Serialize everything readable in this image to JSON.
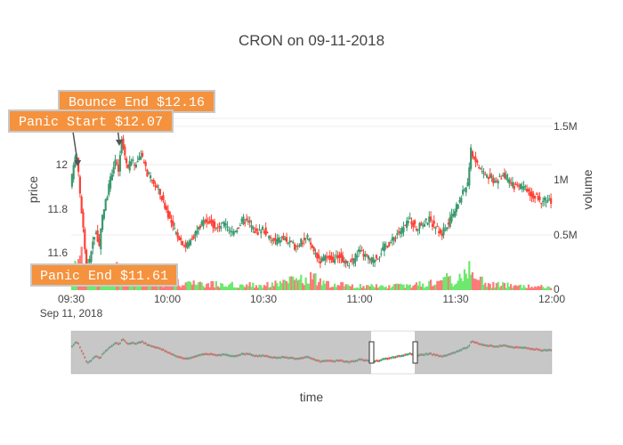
{
  "chart_data": {
    "type": "candlestick",
    "title": "CRON on 09-11-2018",
    "xlabel": "time",
    "y_left_label": "price",
    "y_right_label": "volume",
    "date_subtitle": "Sep 11, 2018",
    "x_ticks": [
      "09:30",
      "10:00",
      "10:30",
      "11:00",
      "11:30",
      "12:00"
    ],
    "y_left_ticks": [
      "11.6",
      "11.8",
      "12"
    ],
    "y_right_ticks": [
      "0",
      "0.5M",
      "1M",
      "1.5M"
    ],
    "price_range": [
      11.53,
      12.28
    ],
    "volume_range": [
      0,
      1500000
    ],
    "time_range_minutes": [
      0,
      150
    ],
    "up_color": "#3d9970",
    "down_color": "#ff4136",
    "volume_up_color": "#6ee86e",
    "volume_down_color": "#ff7a7a",
    "annotation_color": "#f5923e",
    "rangeslider_shade": "#999999",
    "price_path": [
      [
        0,
        11.97
      ],
      [
        1,
        12.08
      ],
      [
        2,
        12.12
      ],
      [
        3,
        11.95
      ],
      [
        4,
        11.8
      ],
      [
        5,
        11.62
      ],
      [
        6,
        11.66
      ],
      [
        7,
        11.75
      ],
      [
        8,
        11.78
      ],
      [
        9,
        11.72
      ],
      [
        10,
        11.85
      ],
      [
        11,
        11.92
      ],
      [
        12,
        11.98
      ],
      [
        13,
        12.05
      ],
      [
        14,
        12.1
      ],
      [
        15,
        12.05
      ],
      [
        16,
        12.18
      ],
      [
        17,
        12.12
      ],
      [
        18,
        12.06
      ],
      [
        19,
        12.1
      ],
      [
        20,
        12.08
      ],
      [
        22,
        12.12
      ],
      [
        24,
        12.04
      ],
      [
        26,
        12.0
      ],
      [
        28,
        11.95
      ],
      [
        30,
        11.88
      ],
      [
        32,
        11.8
      ],
      [
        34,
        11.76
      ],
      [
        36,
        11.72
      ],
      [
        38,
        11.76
      ],
      [
        40,
        11.8
      ],
      [
        42,
        11.84
      ],
      [
        44,
        11.82
      ],
      [
        46,
        11.8
      ],
      [
        48,
        11.82
      ],
      [
        50,
        11.78
      ],
      [
        52,
        11.8
      ],
      [
        54,
        11.84
      ],
      [
        56,
        11.82
      ],
      [
        58,
        11.78
      ],
      [
        60,
        11.8
      ],
      [
        62,
        11.76
      ],
      [
        64,
        11.74
      ],
      [
        66,
        11.76
      ],
      [
        68,
        11.74
      ],
      [
        70,
        11.72
      ],
      [
        72,
        11.74
      ],
      [
        74,
        11.76
      ],
      [
        76,
        11.7
      ],
      [
        78,
        11.66
      ],
      [
        80,
        11.67
      ],
      [
        82,
        11.66
      ],
      [
        84,
        11.68
      ],
      [
        86,
        11.64
      ],
      [
        88,
        11.66
      ],
      [
        90,
        11.7
      ],
      [
        92,
        11.68
      ],
      [
        94,
        11.66
      ],
      [
        96,
        11.68
      ],
      [
        98,
        11.72
      ],
      [
        100,
        11.74
      ],
      [
        102,
        11.78
      ],
      [
        104,
        11.8
      ],
      [
        106,
        11.84
      ],
      [
        108,
        11.8
      ],
      [
        110,
        11.82
      ],
      [
        112,
        11.84
      ],
      [
        114,
        11.8
      ],
      [
        116,
        11.78
      ],
      [
        118,
        11.82
      ],
      [
        120,
        11.88
      ],
      [
        122,
        11.94
      ],
      [
        124,
        12.0
      ],
      [
        125,
        12.14
      ],
      [
        127,
        12.08
      ],
      [
        129,
        12.04
      ],
      [
        131,
        12.02
      ],
      [
        133,
        12.0
      ],
      [
        135,
        12.04
      ],
      [
        137,
        12.0
      ],
      [
        139,
        11.98
      ],
      [
        141,
        11.98
      ],
      [
        143,
        11.96
      ],
      [
        145,
        11.94
      ],
      [
        147,
        11.92
      ],
      [
        149,
        11.92
      ],
      [
        150,
        11.92
      ]
    ],
    "volume_profile": [
      [
        0,
        60000
      ],
      [
        1,
        300000
      ],
      [
        2,
        350000
      ],
      [
        4,
        200000
      ],
      [
        6,
        160000
      ],
      [
        8,
        120000
      ],
      [
        10,
        100000
      ],
      [
        14,
        200000
      ],
      [
        16,
        120000
      ],
      [
        20,
        80000
      ],
      [
        24,
        90000
      ],
      [
        28,
        80000
      ],
      [
        34,
        70000
      ],
      [
        40,
        60000
      ],
      [
        60,
        50000
      ],
      [
        75,
        120000
      ],
      [
        80,
        60000
      ],
      [
        90,
        40000
      ],
      [
        100,
        40000
      ],
      [
        110,
        60000
      ],
      [
        116,
        120000
      ],
      [
        120,
        80000
      ],
      [
        123,
        220000
      ],
      [
        124,
        230000
      ],
      [
        126,
        120000
      ],
      [
        130,
        60000
      ],
      [
        140,
        40000
      ],
      [
        150,
        30000
      ]
    ],
    "annotations": [
      {
        "label": "Bounce End $12.16",
        "minute": 15,
        "price": 12.16
      },
      {
        "label": "Panic Start $12.07",
        "minute": 2,
        "price": 12.07
      },
      {
        "label": "Panic End $11.61",
        "minute": 5,
        "price": 11.61
      }
    ]
  }
}
